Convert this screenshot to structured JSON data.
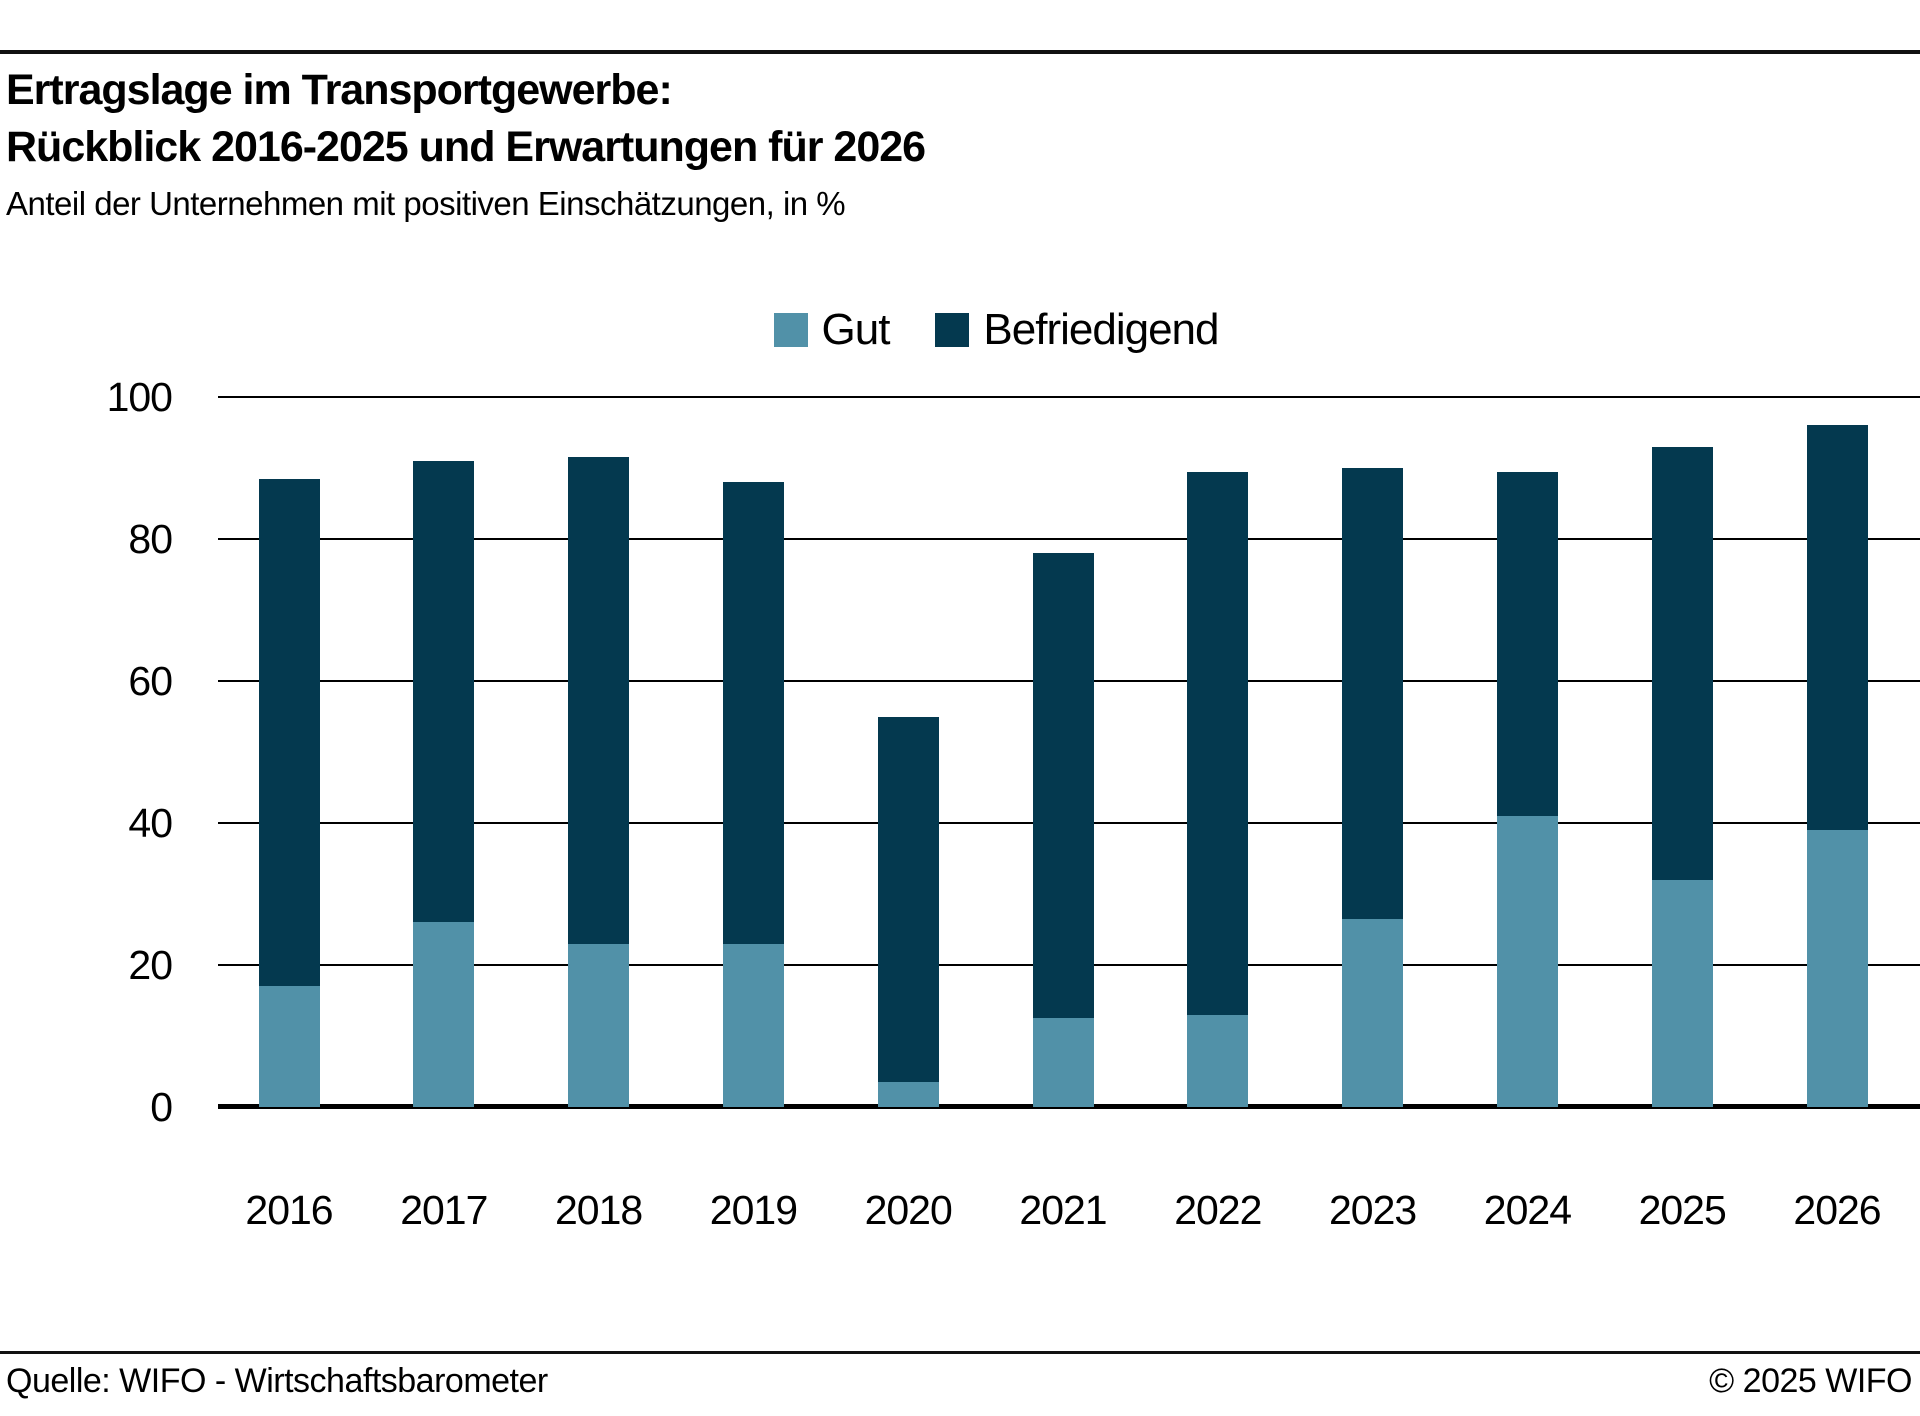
{
  "header": {
    "title_line1": "Ertragslage im Transportgewerbe:",
    "title_line2": "Rückblick 2016-2025 und Erwartungen für 2026",
    "subtitle": "Anteil der Unternehmen mit positiven Einschätzungen, in %"
  },
  "footer": {
    "source": "Quelle: WIFO - Wirtschaftsbarometer",
    "copyright": "© 2025 WIFO"
  },
  "colors": {
    "gut": "#5191a8",
    "befriedigend": "#04394f",
    "axis": "#000000",
    "background": "#ffffff"
  },
  "chart_data": {
    "type": "bar",
    "stacked": true,
    "title": "Ertragslage im Transportgewerbe: Rückblick 2016-2025 und Erwartungen für 2026",
    "subtitle": "Anteil der Unternehmen mit positiven Einschätzungen, in %",
    "categories": [
      "2016",
      "2017",
      "2018",
      "2019",
      "2020",
      "2021",
      "2022",
      "2023",
      "2024",
      "2025",
      "2026"
    ],
    "series": [
      {
        "name": "Gut",
        "color": "#5191a8",
        "values": [
          17,
          26,
          23,
          23,
          3.5,
          12.5,
          13,
          26.5,
          41,
          32,
          39
        ]
      },
      {
        "name": "Befriedigend",
        "color": "#04394f",
        "values": [
          71.5,
          65,
          68.5,
          65,
          51.5,
          65.5,
          76.5,
          63.5,
          48.5,
          61,
          57
        ]
      }
    ],
    "totals": [
      88.5,
      91,
      91.5,
      88,
      55,
      78,
      89.5,
      90,
      89.5,
      93,
      96
    ],
    "xlabel": "",
    "ylabel": "",
    "ylim": [
      0,
      100
    ],
    "yticks": [
      0,
      20,
      40,
      60,
      80,
      100
    ],
    "grid": true,
    "legend_position": "top-center"
  }
}
